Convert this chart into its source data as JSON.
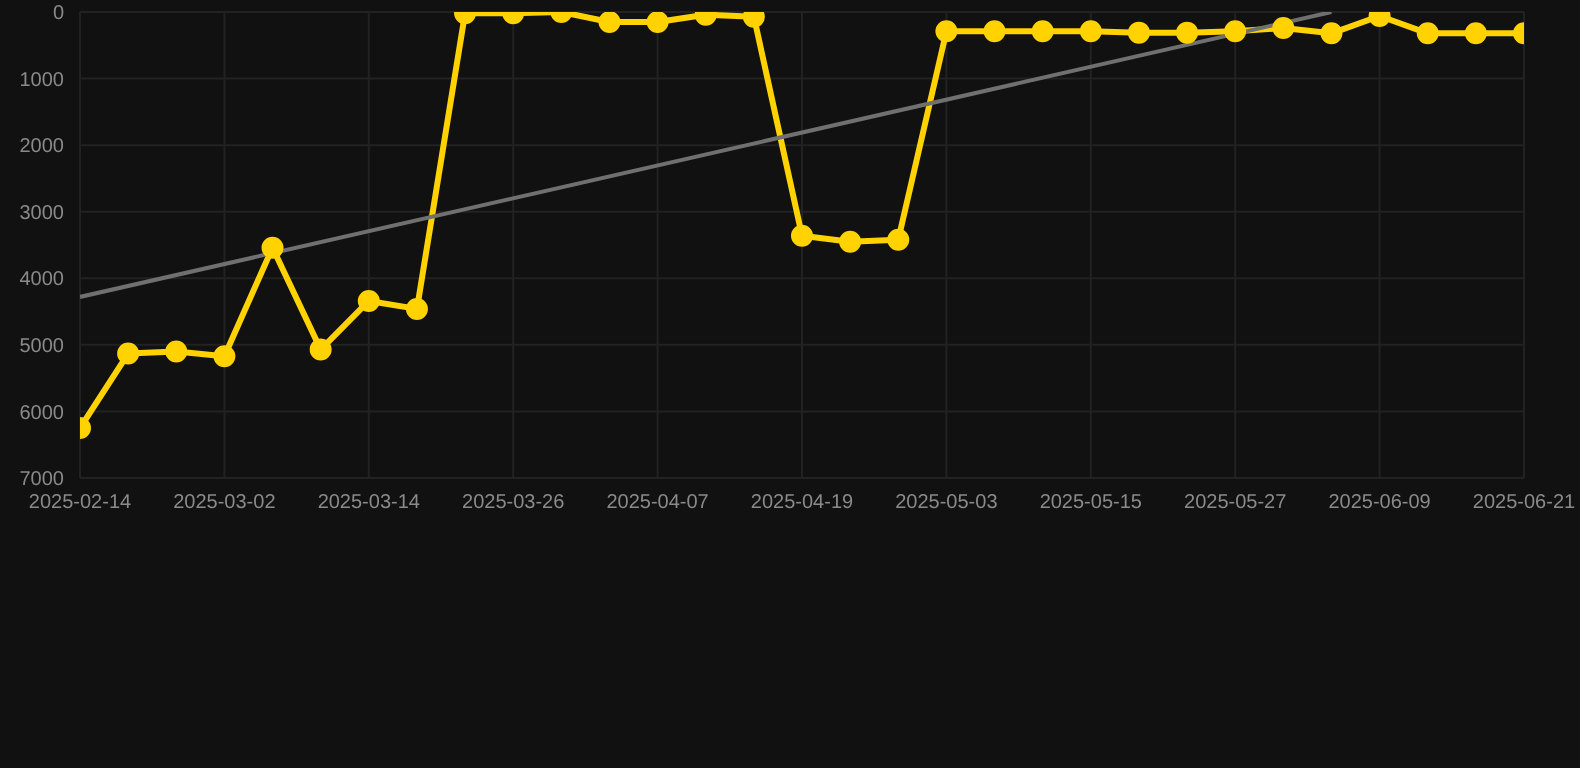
{
  "chart_data": {
    "type": "line",
    "categories": [
      "2025-02-14",
      null,
      null,
      "2025-03-02",
      null,
      null,
      "2025-03-14",
      null,
      null,
      "2025-03-26",
      null,
      null,
      "2025-04-07",
      null,
      null,
      "2025-04-19",
      null,
      null,
      "2025-05-03",
      null,
      null,
      "2025-05-15",
      null,
      null,
      "2025-05-27",
      null,
      null,
      "2025-06-09",
      null,
      null,
      "2025-06-21"
    ],
    "series": [
      {
        "color": "#ffd200",
        "marker": "circle",
        "values": [
          6250,
          5130,
          5100,
          5170,
          3540,
          5070,
          4340,
          4460,
          20,
          20,
          0,
          150,
          150,
          40,
          70,
          3360,
          3450,
          3420,
          290,
          290,
          290,
          290,
          310,
          310,
          290,
          240,
          320,
          60,
          320,
          320,
          320
        ]
      },
      {
        "color": "#707070",
        "marker": "none",
        "values": [
          4280,
          null,
          null,
          null,
          null,
          null,
          null,
          null,
          null,
          null,
          null,
          null,
          null,
          null,
          null,
          null,
          null,
          null,
          null,
          null,
          null,
          null,
          null,
          null,
          null,
          null,
          0,
          null,
          null,
          null,
          null
        ]
      }
    ],
    "ylim": [
      7000,
      0
    ],
    "yticks": [
      0,
      1000,
      2000,
      3000,
      4000,
      5000,
      6000,
      7000
    ],
    "grid": true
  }
}
